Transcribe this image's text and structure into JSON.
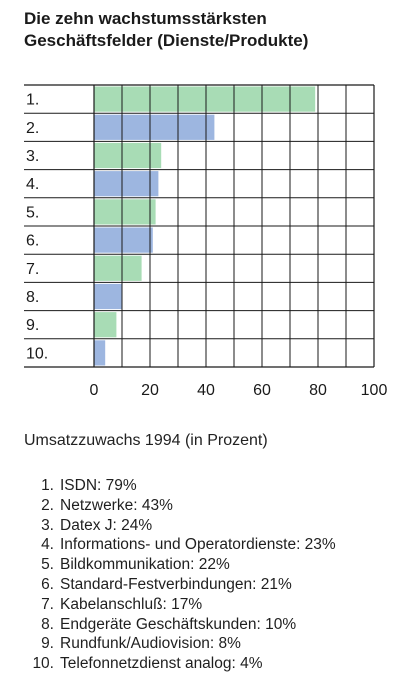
{
  "title_line1": "Die zehn wachstumsstärksten",
  "title_line2": "Geschäftsfelder (Dienste/Produkte)",
  "subtitle": "Umsatzzuwachs 1994 (in Prozent)",
  "colors": {
    "green": "#a8dcb5",
    "blue": "#9db6e0",
    "grid": "#1a1a1a"
  },
  "chart_data": {
    "type": "bar",
    "orientation": "horizontal",
    "categories": [
      "1.",
      "2.",
      "3.",
      "4.",
      "5.",
      "6.",
      "7.",
      "8.",
      "9.",
      "10."
    ],
    "values": [
      79,
      43,
      24,
      23,
      22,
      21,
      17,
      10,
      8,
      4
    ],
    "bar_colors": [
      "green",
      "blue",
      "green",
      "blue",
      "green",
      "blue",
      "green",
      "blue",
      "green",
      "blue"
    ],
    "xlim": [
      0,
      100
    ],
    "xticks": [
      0,
      20,
      40,
      60,
      80,
      100
    ],
    "grid_step": 10,
    "grid": true
  },
  "legend_items": [
    {
      "num": "1.",
      "text": "ISDN: 79%"
    },
    {
      "num": "2.",
      "text": "Netzwerke: 43%"
    },
    {
      "num": "3.",
      "text": "Datex J: 24%"
    },
    {
      "num": "4.",
      "text": "Informations- und Operatordienste: 23%"
    },
    {
      "num": "5.",
      "text": "Bildkommunikation: 22%"
    },
    {
      "num": "6.",
      "text": "Standard-Festverbindungen: 21%"
    },
    {
      "num": "7.",
      "text": "Kabelanschluß: 17%"
    },
    {
      "num": "8.",
      "text": "Endgeräte Geschäftskunden: 10%"
    },
    {
      "num": "9.",
      "text": "Rundfunk/Audiovision: 8%"
    },
    {
      "num": "10.",
      "text": "Telefonnetzdienst analog: 4%"
    }
  ]
}
